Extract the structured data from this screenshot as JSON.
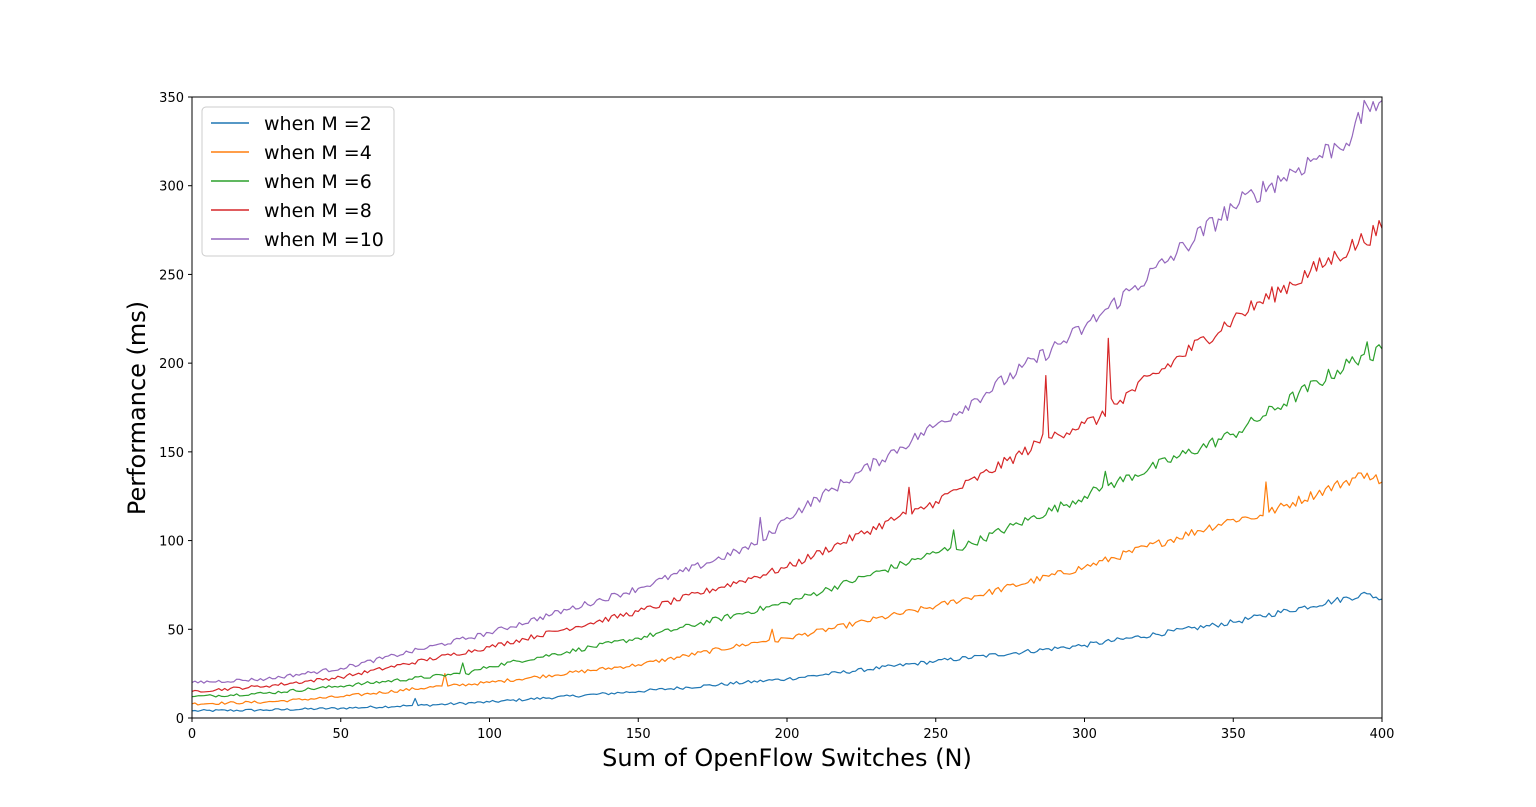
{
  "chart_data": {
    "type": "line",
    "title": "",
    "xlabel": "Sum of OpenFlow Switches (N)",
    "ylabel": "Performance (ms)",
    "xlim": [
      0,
      400
    ],
    "ylim": [
      0,
      350
    ],
    "xticks": [
      0,
      50,
      100,
      150,
      200,
      250,
      300,
      350,
      400
    ],
    "yticks": [
      0,
      50,
      100,
      150,
      200,
      250,
      300,
      350
    ],
    "grid": false,
    "legend_position": "top-left",
    "series": [
      {
        "name": "when M =2",
        "color": "#1f77b4",
        "x": [
          0,
          25,
          50,
          74,
          75,
          76,
          100,
          150,
          200,
          250,
          300,
          350,
          395,
          400
        ],
        "y": [
          4,
          4.5,
          5.5,
          7,
          11,
          7,
          9,
          15,
          22,
          32,
          41,
          54,
          70,
          67
        ]
      },
      {
        "name": "when M =4",
        "color": "#ff7f0e",
        "x": [
          0,
          25,
          50,
          84,
          85,
          86,
          100,
          150,
          194,
          195,
          196,
          200,
          250,
          300,
          350,
          360,
          361,
          362,
          395,
          400
        ],
        "y": [
          8,
          9,
          12,
          18,
          25,
          18,
          20,
          30,
          44,
          50,
          43,
          45,
          63,
          85,
          112,
          114,
          133,
          116,
          138,
          133
        ]
      },
      {
        "name": "when M =6",
        "color": "#2ca02c",
        "x": [
          0,
          25,
          50,
          90,
          91,
          92,
          100,
          150,
          200,
          250,
          255,
          256,
          257,
          300,
          306,
          307,
          308,
          350,
          394,
          395,
          396,
          400
        ],
        "y": [
          12,
          14,
          18,
          25,
          31,
          25,
          29,
          45,
          65,
          93,
          96,
          106,
          95,
          125,
          130,
          139,
          131,
          160,
          205,
          212,
          202,
          208
        ]
      },
      {
        "name": "when M =8",
        "color": "#d62728",
        "x": [
          0,
          25,
          50,
          100,
          150,
          200,
          240,
          241,
          242,
          250,
          285,
          286,
          287,
          288,
          300,
          307,
          308,
          309,
          310,
          350,
          400
        ],
        "y": [
          15,
          18,
          23,
          40,
          60,
          85,
          115,
          130,
          115,
          122,
          155,
          160,
          193,
          158,
          166,
          170,
          214,
          180,
          177,
          225,
          276
        ]
      },
      {
        "name": "when M =10",
        "color": "#9467bd",
        "x": [
          0,
          25,
          50,
          100,
          150,
          190,
          191,
          192,
          200,
          250,
          300,
          350,
          390,
          395,
          400
        ],
        "y": [
          20,
          22,
          28,
          48,
          73,
          98,
          113,
          100,
          113,
          165,
          220,
          288,
          328,
          345,
          348
        ]
      }
    ]
  }
}
